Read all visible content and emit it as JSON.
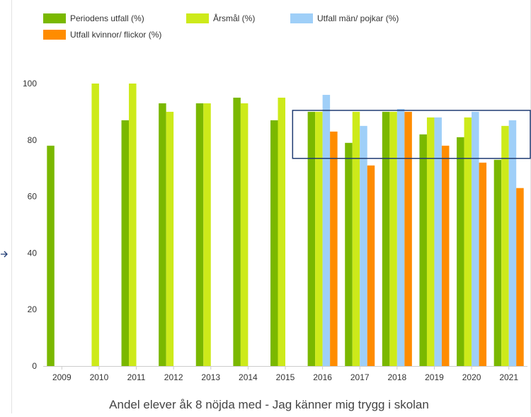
{
  "chart_data": {
    "type": "bar",
    "title": "Andel elever åk 8 nöjda med - Jag känner mig trygg i skolan",
    "xlabel": "",
    "ylabel": "",
    "ylim": [
      0,
      100
    ],
    "yticks": [
      0,
      20,
      40,
      60,
      80,
      100
    ],
    "grid": false,
    "legend_position": "top",
    "categories": [
      "2009",
      "2010",
      "2011",
      "2012",
      "2013",
      "2014",
      "2015",
      "2016",
      "2017",
      "2018",
      "2019",
      "2020",
      "2021"
    ],
    "series": [
      {
        "name": "Periodens utfall (%)",
        "color": "#7ab800",
        "values": [
          78,
          null,
          87,
          93,
          93,
          95,
          87,
          90,
          79,
          90,
          82,
          81,
          73
        ]
      },
      {
        "name": "Årsmål (%)",
        "color": "#cdea1a",
        "values": [
          null,
          100,
          100,
          90,
          93,
          93,
          95,
          90,
          90,
          90,
          88,
          88,
          85
        ]
      },
      {
        "name": "Utfall män/ pojkar (%)",
        "color": "#9fcff8",
        "values": [
          null,
          null,
          null,
          null,
          null,
          null,
          null,
          96,
          85,
          91,
          88,
          90,
          87
        ]
      },
      {
        "name": "Utfall kvinnor/ flickor (%)",
        "color": "#ff8c00",
        "values": [
          null,
          null,
          null,
          null,
          null,
          null,
          null,
          83,
          71,
          90,
          78,
          72,
          63
        ]
      }
    ],
    "annotations": [
      {
        "type": "rectangle-outline",
        "color": "#1f3b73",
        "x_from": "2016",
        "x_to": "2021",
        "y_from": 73,
        "y_to": 90
      }
    ]
  },
  "page": {
    "side_arrow_color": "#1f3b73"
  }
}
